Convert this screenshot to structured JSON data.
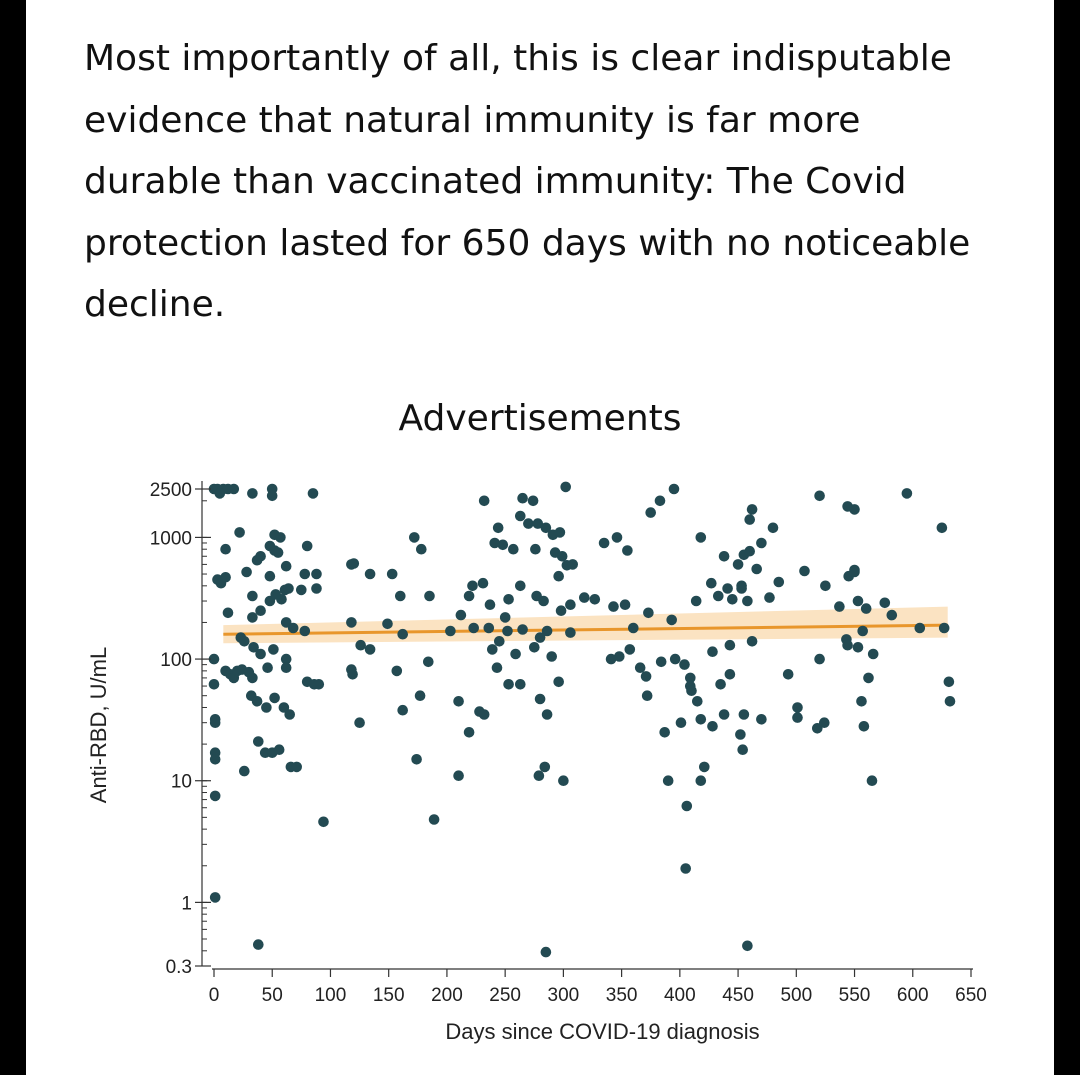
{
  "article": {
    "paragraph": "Most importantly of all, this is clear indisputable evidence that natural immunity is far more durable than vaccinated immunity: The Covid protection lasted for 650 days with no noticeable decline."
  },
  "ads_label": "Advertisements",
  "colors": {
    "point": "#234a52",
    "trend": "#e8962c",
    "band": "#fbe3c2",
    "axis": "#333333",
    "background": "#ffffff",
    "frame": "#000000"
  },
  "chart_data": {
    "type": "scatter",
    "title": "",
    "xlabel": "Days since COVID-19 diagnosis",
    "ylabel": "Anti-RBD, U/mL",
    "xlim": [
      0,
      650
    ],
    "ylim": [
      0.3,
      2500
    ],
    "y_scale": "log",
    "x_ticks": [
      0,
      50,
      100,
      150,
      200,
      250,
      300,
      350,
      400,
      450,
      500,
      550,
      600,
      650
    ],
    "x_tick_labels": [
      "0",
      "50",
      "100",
      "150",
      "200",
      "250",
      "300",
      "350",
      "400",
      "450",
      "500",
      "550",
      "600",
      "650"
    ],
    "y_ticks": [
      0.3,
      1,
      10,
      100,
      1000,
      2500
    ],
    "y_tick_labels": [
      "0.3",
      "1",
      "10",
      "100",
      "1000",
      "2500"
    ],
    "trend": {
      "x": [
        8,
        630
      ],
      "y": [
        160,
        190
      ],
      "band_lower": [
        135,
        150
      ],
      "band_upper": [
        190,
        270
      ]
    },
    "points": [
      [
        0,
        2500
      ],
      [
        3,
        2500
      ],
      [
        8,
        2500
      ],
      [
        12,
        2500
      ],
      [
        17,
        2500
      ],
      [
        5,
        2300
      ],
      [
        33,
        2300
      ],
      [
        50,
        2500
      ],
      [
        50,
        2200
      ],
      [
        85,
        2300
      ],
      [
        22,
        1100
      ],
      [
        52,
        1050
      ],
      [
        57,
        1000
      ],
      [
        10,
        800
      ],
      [
        40,
        700
      ],
      [
        48,
        850
      ],
      [
        52,
        780
      ],
      [
        55,
        750
      ],
      [
        80,
        850
      ],
      [
        3,
        450
      ],
      [
        6,
        420
      ],
      [
        10,
        470
      ],
      [
        28,
        520
      ],
      [
        37,
        650
      ],
      [
        48,
        480
      ],
      [
        62,
        580
      ],
      [
        78,
        500
      ],
      [
        88,
        500
      ],
      [
        33,
        330
      ],
      [
        12,
        240
      ],
      [
        33,
        220
      ],
      [
        40,
        250
      ],
      [
        48,
        300
      ],
      [
        53,
        340
      ],
      [
        58,
        310
      ],
      [
        61,
        370
      ],
      [
        64,
        380
      ],
      [
        75,
        370
      ],
      [
        88,
        380
      ],
      [
        62,
        200
      ],
      [
        68,
        180
      ],
      [
        78,
        170
      ],
      [
        23,
        150
      ],
      [
        26,
        140
      ],
      [
        34,
        125
      ],
      [
        40,
        110
      ],
      [
        51,
        120
      ],
      [
        62,
        100
      ],
      [
        0,
        100
      ],
      [
        10,
        80
      ],
      [
        14,
        75
      ],
      [
        17,
        70
      ],
      [
        20,
        80
      ],
      [
        24,
        82
      ],
      [
        30,
        78
      ],
      [
        33,
        70
      ],
      [
        46,
        85
      ],
      [
        62,
        85
      ],
      [
        0,
        62
      ],
      [
        32,
        50
      ],
      [
        37,
        45
      ],
      [
        45,
        40
      ],
      [
        52,
        48
      ],
      [
        60,
        40
      ],
      [
        65,
        35
      ],
      [
        80,
        65
      ],
      [
        86,
        62
      ],
      [
        90,
        62
      ],
      [
        1,
        32
      ],
      [
        1,
        30
      ],
      [
        38,
        21
      ],
      [
        44,
        17
      ],
      [
        50,
        17
      ],
      [
        56,
        18
      ],
      [
        66,
        13
      ],
      [
        71,
        13
      ],
      [
        26,
        12
      ],
      [
        1,
        17
      ],
      [
        1,
        15
      ],
      [
        1,
        7.5
      ],
      [
        1,
        1.1
      ],
      [
        38,
        0.45
      ],
      [
        94,
        4.6
      ],
      [
        118,
        600
      ],
      [
        120,
        610
      ],
      [
        134,
        500
      ],
      [
        153,
        500
      ],
      [
        160,
        330
      ],
      [
        172,
        1000
      ],
      [
        178,
        800
      ],
      [
        185,
        330
      ],
      [
        118,
        200
      ],
      [
        126,
        130
      ],
      [
        134,
        120
      ],
      [
        149,
        195
      ],
      [
        162,
        160
      ],
      [
        203,
        170
      ],
      [
        212,
        230
      ],
      [
        219,
        330
      ],
      [
        118,
        82
      ],
      [
        119,
        75
      ],
      [
        157,
        80
      ],
      [
        162,
        38
      ],
      [
        177,
        50
      ],
      [
        184,
        95
      ],
      [
        125,
        30
      ],
      [
        174,
        15
      ],
      [
        210,
        45
      ],
      [
        210,
        11
      ],
      [
        189,
        4.8
      ],
      [
        232,
        2000
      ],
      [
        244,
        1200
      ],
      [
        248,
        870
      ],
      [
        257,
        800
      ],
      [
        265,
        2100
      ],
      [
        263,
        1500
      ],
      [
        270,
        1300
      ],
      [
        278,
        1300
      ],
      [
        274,
        2000
      ],
      [
        285,
        1200
      ],
      [
        291,
        1050
      ],
      [
        297,
        1100
      ],
      [
        302,
        2600
      ],
      [
        222,
        400
      ],
      [
        237,
        280
      ],
      [
        250,
        220
      ],
      [
        241,
        900
      ],
      [
        276,
        800
      ],
      [
        293,
        750
      ],
      [
        299,
        700
      ],
      [
        303,
        590
      ],
      [
        308,
        600
      ],
      [
        296,
        480
      ],
      [
        231,
        420
      ],
      [
        263,
        400
      ],
      [
        253,
        310
      ],
      [
        277,
        330
      ],
      [
        283,
        300
      ],
      [
        298,
        250
      ],
      [
        306,
        280
      ],
      [
        318,
        320
      ],
      [
        327,
        310
      ],
      [
        223,
        180
      ],
      [
        236,
        180
      ],
      [
        245,
        140
      ],
      [
        252,
        170
      ],
      [
        265,
        175
      ],
      [
        280,
        150
      ],
      [
        286,
        170
      ],
      [
        306,
        165
      ],
      [
        239,
        120
      ],
      [
        259,
        110
      ],
      [
        275,
        125
      ],
      [
        290,
        105
      ],
      [
        243,
        85
      ],
      [
        253,
        62
      ],
      [
        263,
        62
      ],
      [
        280,
        47
      ],
      [
        286,
        35
      ],
      [
        296,
        65
      ],
      [
        219,
        25
      ],
      [
        228,
        37
      ],
      [
        232,
        35
      ],
      [
        279,
        11
      ],
      [
        284,
        13
      ],
      [
        300,
        10
      ],
      [
        285,
        0.39
      ],
      [
        335,
        900
      ],
      [
        346,
        1000
      ],
      [
        355,
        780
      ],
      [
        375,
        1600
      ],
      [
        383,
        2000
      ],
      [
        395,
        2500
      ],
      [
        343,
        270
      ],
      [
        353,
        280
      ],
      [
        360,
        180
      ],
      [
        373,
        240
      ],
      [
        393,
        210
      ],
      [
        414,
        300
      ],
      [
        341,
        100
      ],
      [
        348,
        105
      ],
      [
        357,
        120
      ],
      [
        366,
        85
      ],
      [
        371,
        72
      ],
      [
        384,
        95
      ],
      [
        396,
        100
      ],
      [
        404,
        90
      ],
      [
        409,
        70
      ],
      [
        409,
        60
      ],
      [
        410,
        55
      ],
      [
        415,
        45
      ],
      [
        418,
        32
      ],
      [
        428,
        28
      ],
      [
        438,
        35
      ],
      [
        452,
        24
      ],
      [
        454,
        18
      ],
      [
        372,
        50
      ],
      [
        387,
        25
      ],
      [
        390,
        10
      ],
      [
        401,
        30
      ],
      [
        406,
        6.2
      ],
      [
        418,
        10
      ],
      [
        421,
        13
      ],
      [
        405,
        1.9
      ],
      [
        458,
        0.44
      ],
      [
        418,
        1000
      ],
      [
        427,
        420
      ],
      [
        441,
        380
      ],
      [
        453,
        400
      ],
      [
        460,
        1400
      ],
      [
        462,
        1700
      ],
      [
        466,
        550
      ],
      [
        470,
        900
      ],
      [
        438,
        700
      ],
      [
        450,
        600
      ],
      [
        455,
        720
      ],
      [
        460,
        770
      ],
      [
        480,
        1200
      ],
      [
        433,
        330
      ],
      [
        445,
        310
      ],
      [
        458,
        300
      ],
      [
        453,
        380
      ],
      [
        477,
        320
      ],
      [
        485,
        430
      ],
      [
        462,
        140
      ],
      [
        493,
        75
      ],
      [
        501,
        40
      ],
      [
        501,
        33
      ],
      [
        518,
        27
      ],
      [
        443,
        130
      ],
      [
        428,
        115
      ],
      [
        435,
        62
      ],
      [
        443,
        75
      ],
      [
        455,
        35
      ],
      [
        470,
        32
      ],
      [
        507,
        530
      ],
      [
        520,
        2200
      ],
      [
        525,
        400
      ],
      [
        537,
        270
      ],
      [
        544,
        1800
      ],
      [
        550,
        1700
      ],
      [
        550,
        540
      ],
      [
        553,
        300
      ],
      [
        560,
        260
      ],
      [
        566,
        110
      ],
      [
        543,
        145
      ],
      [
        544,
        130
      ],
      [
        553,
        125
      ],
      [
        557,
        170
      ],
      [
        562,
        70
      ],
      [
        556,
        45
      ],
      [
        576,
        290
      ],
      [
        582,
        230
      ],
      [
        595,
        2300
      ],
      [
        606,
        180
      ],
      [
        625,
        1200
      ],
      [
        627,
        180
      ],
      [
        631,
        65
      ],
      [
        632,
        45
      ],
      [
        545,
        480
      ],
      [
        550,
        520
      ],
      [
        520,
        100
      ],
      [
        524,
        30
      ],
      [
        558,
        28
      ],
      [
        565,
        10
      ]
    ]
  }
}
